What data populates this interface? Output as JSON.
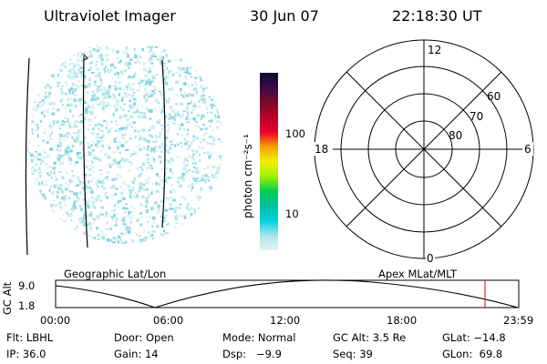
{
  "header": {
    "title": "Ultraviolet Imager",
    "date": "30 Jun 07",
    "time": "22:18:30 UT"
  },
  "colorbar": {
    "unit_label": "photon cm⁻²s⁻¹",
    "ticks": [
      "100",
      "10"
    ],
    "colors": [
      "#0b0b2a",
      "#3b0a4c",
      "#7a0a2a",
      "#b8002a",
      "#e8002a",
      "#f5a000",
      "#f0f000",
      "#a0f000",
      "#00d050",
      "#00c0a0",
      "#00d0e0",
      "#a8e4ec",
      "#e8f2f4"
    ]
  },
  "polar": {
    "mlt_labels": {
      "top": "12",
      "left": "18",
      "right": "6",
      "bottom": "0"
    },
    "lat_labels": [
      "60",
      "70",
      "80"
    ]
  },
  "timeline": {
    "left_label": "Geographic Lat/Lon",
    "right_label": "Apex MLat/MLT",
    "y_axis_label": "GC Alt",
    "y_ticks": [
      "9.0",
      "1.8"
    ],
    "x_ticks": [
      "00:00",
      "06:00",
      "12:00",
      "18:00",
      "23:59"
    ],
    "marker_color": "#c83232"
  },
  "info": {
    "flt": "Flt: LBHL",
    "door": "Door: Open",
    "mode": "Mode: Normal",
    "gcalt": "GC Alt: 3.5 Re",
    "glat": "GLat: −14.8",
    "ip": "IP: 36.0",
    "gain": "Gain: 14",
    "dsp": "Dsp:   −9.9",
    "seq": "Seq: 39",
    "glon": "GLon:  69.8"
  }
}
